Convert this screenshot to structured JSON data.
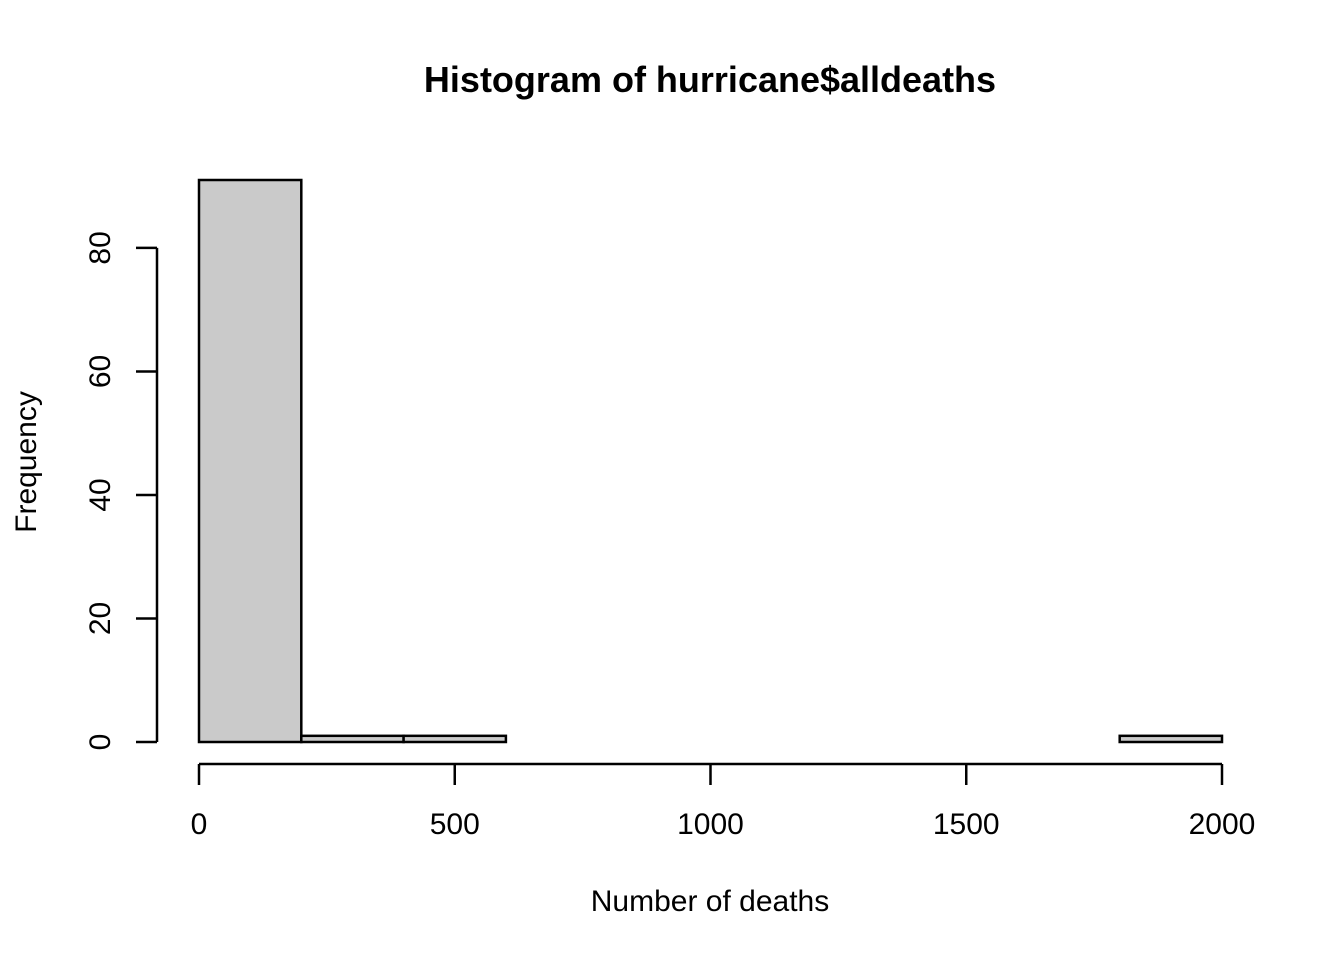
{
  "chart_data": {
    "type": "bar",
    "title": "Histogram of hurricane$alldeaths",
    "xlabel": "Number of deaths",
    "ylabel": "Frequency",
    "bins": [
      {
        "start": 0,
        "end": 200,
        "count": 91
      },
      {
        "start": 200,
        "end": 400,
        "count": 1
      },
      {
        "start": 400,
        "end": 600,
        "count": 1
      },
      {
        "start": 600,
        "end": 800,
        "count": 0
      },
      {
        "start": 800,
        "end": 1000,
        "count": 0
      },
      {
        "start": 1000,
        "end": 1200,
        "count": 0
      },
      {
        "start": 1200,
        "end": 1400,
        "count": 0
      },
      {
        "start": 1400,
        "end": 1600,
        "count": 0
      },
      {
        "start": 1600,
        "end": 1800,
        "count": 0
      },
      {
        "start": 1800,
        "end": 2000,
        "count": 1
      }
    ],
    "xlim": [
      0,
      2000
    ],
    "ylim": [
      0,
      91
    ],
    "x_ticks": [
      0,
      500,
      1000,
      1500,
      2000
    ],
    "y_ticks": [
      0,
      20,
      40,
      60,
      80
    ],
    "bar_color": "#cacaca",
    "grid": false
  }
}
